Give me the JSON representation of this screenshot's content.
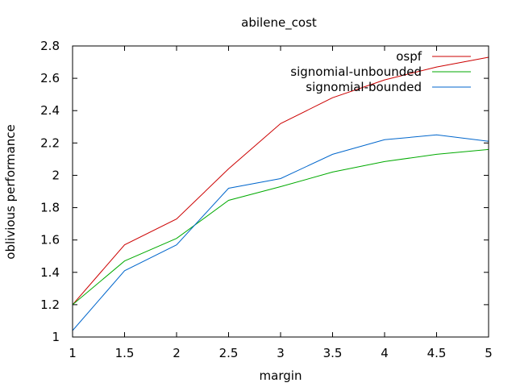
{
  "chart_data": {
    "type": "line",
    "title": "abilene_cost",
    "xlabel": "margin",
    "ylabel": "oblivious performance",
    "xlim": [
      1,
      5
    ],
    "ylim": [
      1,
      2.8
    ],
    "xticks": [
      "1",
      "1.5",
      "2",
      "2.5",
      "3",
      "3.5",
      "4",
      "4.5",
      "5"
    ],
    "yticks": [
      "1",
      "1.2",
      "1.4",
      "1.6",
      "1.8",
      "2",
      "2.2",
      "2.4",
      "2.6",
      "2.8"
    ],
    "grid": false,
    "legend_position": "top-right",
    "x": [
      1,
      1.5,
      2,
      2.5,
      3,
      3.5,
      4,
      4.5,
      5
    ],
    "series": [
      {
        "name": "ospf",
        "color": "#cc0000",
        "values": [
          1.2,
          1.57,
          1.73,
          2.04,
          2.32,
          2.48,
          2.59,
          2.67,
          2.73
        ]
      },
      {
        "name": "signomial-unbounded",
        "color": "#00aa00",
        "values": [
          1.2,
          1.47,
          1.61,
          1.845,
          1.93,
          2.02,
          2.085,
          2.13,
          2.16
        ]
      },
      {
        "name": "signomial-bounded",
        "color": "#0066cc",
        "values": [
          1.04,
          1.41,
          1.57,
          1.92,
          1.98,
          2.13,
          2.22,
          2.25,
          2.21
        ]
      }
    ]
  }
}
